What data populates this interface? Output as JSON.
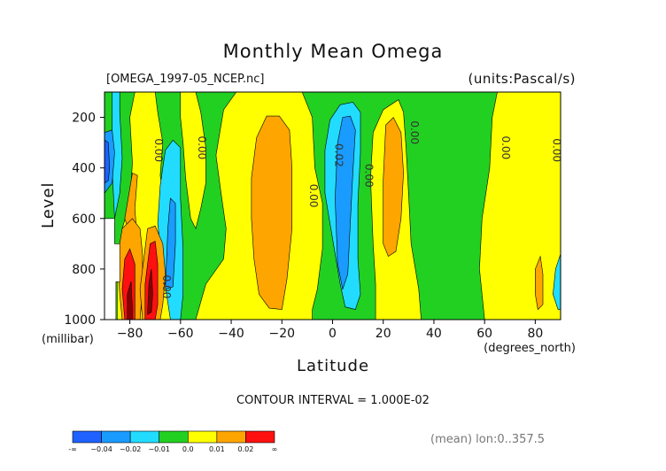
{
  "header": {
    "title": "Monthly Mean Omega",
    "file_label": "[OMEGA_1997-05_NCEP.nc]",
    "units_label": "(units:Pascal/s)"
  },
  "axes": {
    "y_label": "Level",
    "y_unit": "(millibar)",
    "x_label": "Latitude",
    "x_unit": "(degrees_north)"
  },
  "footer": {
    "contour_interval": "CONTOUR INTERVAL = 1.000E-02",
    "mean_info": "(mean) lon:0..357.5"
  },
  "chart_data": {
    "type": "heatmap",
    "title": "Monthly Mean Omega",
    "xlabel": "Latitude",
    "ylabel": "Level",
    "xlim": [
      -90,
      90
    ],
    "ylim": [
      1000,
      100
    ],
    "x_ticks": [
      -80,
      -60,
      -40,
      -20,
      0,
      20,
      40,
      60,
      80
    ],
    "x_tick_labels": [
      "−80",
      "−60",
      "−40",
      "−20",
      "0",
      "20",
      "40",
      "60",
      "80"
    ],
    "y_ticks": [
      200,
      400,
      600,
      800,
      1000
    ],
    "y_tick_labels": [
      "200",
      "400",
      "600",
      "800",
      "1000"
    ],
    "contour_labels": [
      {
        "text": "0.00",
        "lat": -70,
        "lev": 330
      },
      {
        "text": "0.00",
        "lat": -53,
        "lev": 320
      },
      {
        "text": "0.00",
        "lat": -67,
        "lev": 870
      },
      {
        "text": "0.00",
        "lat": -9,
        "lev": 510
      },
      {
        "text": "0.02",
        "lat": 1,
        "lev": 350
      },
      {
        "text": "0.00",
        "lat": 13,
        "lev": 430
      },
      {
        "text": "0.00",
        "lat": 31,
        "lev": 260
      },
      {
        "text": "0.00",
        "lat": 67,
        "lev": 320
      },
      {
        "text": "0.00",
        "lat": 87,
        "lev": 330
      }
    ],
    "colorbar": {
      "colors": [
        "#1f62ff",
        "#1a9bff",
        "#22dcff",
        "#22d022",
        "#ffff00",
        "#ffa500",
        "#ff1010"
      ],
      "labels": [
        "-∞",
        "−0.04",
        "−0.02",
        "−0.01",
        "0.0",
        "0.01",
        "0.02",
        "∞"
      ]
    },
    "palette": {
      "strong_neg": "#1f62ff",
      "neg": "#1a9bff",
      "weak_neg": "#22dcff",
      "near_zero": "#22d022",
      "weak_pos": "#ffff00",
      "pos": "#ffa500",
      "strong_pos": "#ff1010",
      "very_strong_pos": "#8b0000",
      "missing": "#ffffff"
    }
  }
}
